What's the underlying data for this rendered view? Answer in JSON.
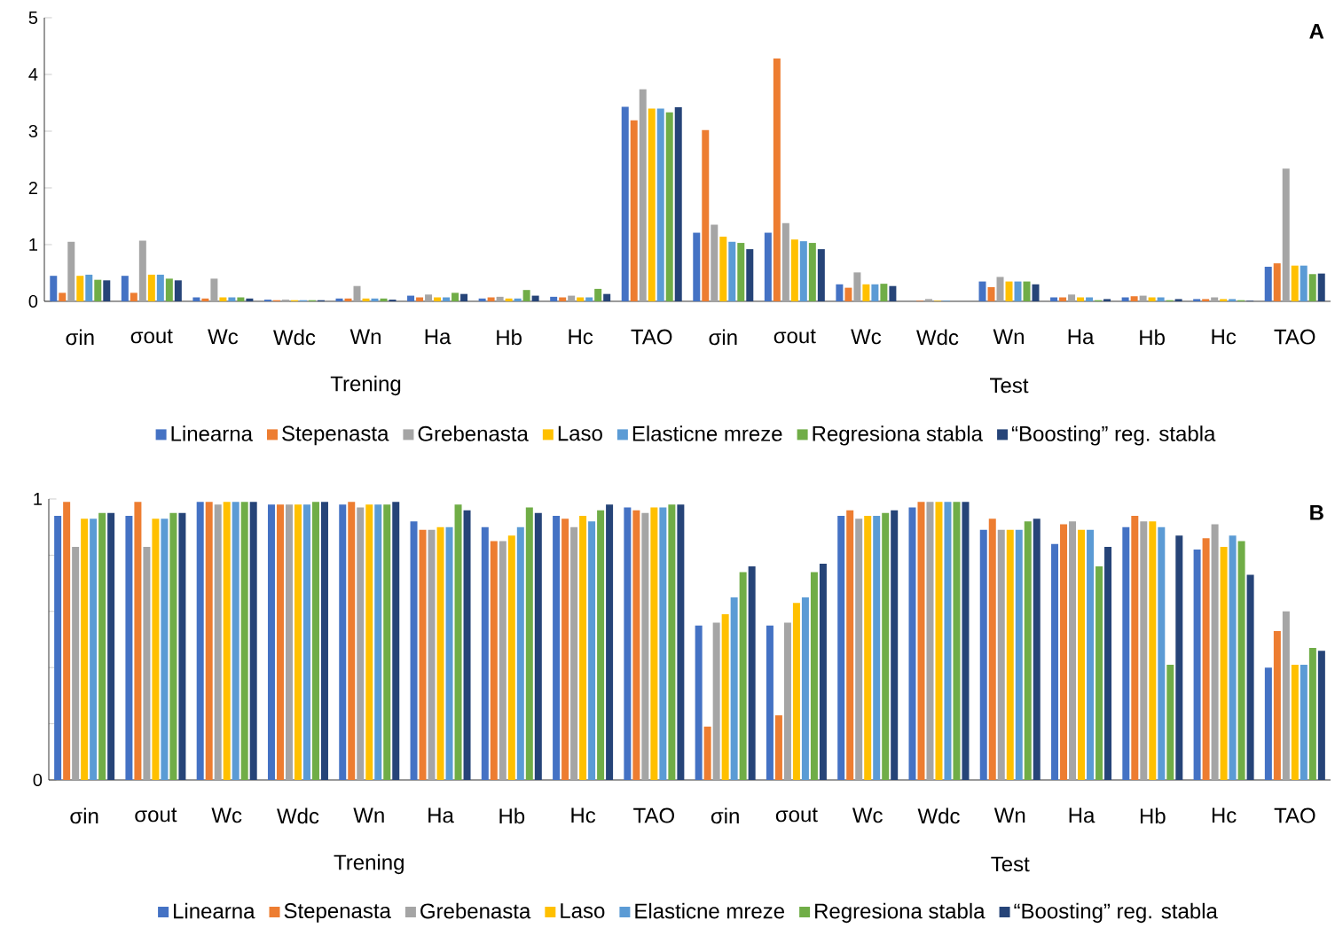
{
  "chart_data": [
    {
      "type": "bar",
      "title": "A",
      "categories": [
        "σin",
        "σout",
        "Wc",
        "Wdc",
        "Wn",
        "Ha",
        "Hb",
        "Hc",
        "TAO",
        "σin",
        "σout",
        "Wc",
        "Wdc",
        "Wn",
        "Ha",
        "Hb",
        "Hc",
        "TAO"
      ],
      "annotations": [
        "Trening",
        "Test"
      ],
      "ylim": [
        0,
        5
      ],
      "yticks": [
        0,
        1,
        2,
        3,
        4,
        5
      ],
      "legend": "bottom",
      "series": [
        {
          "name": "Linearna",
          "color": "#4472c4",
          "values": [
            0.45,
            0.45,
            0.07,
            0.03,
            0.05,
            0.1,
            0.05,
            0.08,
            3.43,
            1.21,
            1.21,
            0.3,
            0.0,
            0.35,
            0.07,
            0.07,
            0.04,
            0.61
          ]
        },
        {
          "name": "Stepenasta",
          "color": "#ed7d31",
          "values": [
            0.15,
            0.15,
            0.05,
            0.02,
            0.05,
            0.07,
            0.07,
            0.07,
            3.19,
            3.02,
            4.28,
            0.24,
            0.01,
            0.25,
            0.07,
            0.09,
            0.04,
            0.67
          ]
        },
        {
          "name": "Grebenasta",
          "color": "#a5a5a5",
          "values": [
            1.05,
            1.07,
            0.4,
            0.03,
            0.27,
            0.12,
            0.08,
            0.1,
            3.74,
            1.35,
            1.38,
            0.51,
            0.04,
            0.43,
            0.12,
            0.1,
            0.07,
            2.34
          ]
        },
        {
          "name": "Laso",
          "color": "#ffc000",
          "values": [
            0.45,
            0.47,
            0.07,
            0.02,
            0.05,
            0.07,
            0.05,
            0.07,
            3.4,
            1.14,
            1.09,
            0.3,
            0.01,
            0.35,
            0.07,
            0.07,
            0.04,
            0.63
          ]
        },
        {
          "name": "Elasticne mreze",
          "color": "#5b9bd5",
          "values": [
            0.47,
            0.47,
            0.07,
            0.02,
            0.05,
            0.07,
            0.05,
            0.07,
            3.4,
            1.05,
            1.06,
            0.3,
            0.01,
            0.35,
            0.07,
            0.07,
            0.04,
            0.63
          ]
        },
        {
          "name": "Regresiona stabla",
          "color": "#70ad47",
          "values": [
            0.38,
            0.4,
            0.07,
            0.02,
            0.05,
            0.15,
            0.2,
            0.22,
            3.33,
            1.03,
            1.03,
            0.31,
            0.0,
            0.35,
            0.02,
            0.02,
            0.02,
            0.48
          ]
        },
        {
          "name": "“Boosting” reg. stabla",
          "color": "#264478",
          "values": [
            0.37,
            0.37,
            0.05,
            0.02,
            0.03,
            0.13,
            0.1,
            0.13,
            3.42,
            0.92,
            0.92,
            0.27,
            0.0,
            0.3,
            0.04,
            0.04,
            0.01,
            0.49
          ]
        }
      ]
    },
    {
      "type": "bar",
      "title": "B",
      "categories": [
        "σin",
        "σout",
        "Wc",
        "Wdc",
        "Wn",
        "Ha",
        "Hb",
        "Hc",
        "TAO",
        "σin",
        "σout",
        "Wc",
        "Wdc",
        "Wn",
        "Ha",
        "Hb",
        "Hc",
        "TAO"
      ],
      "annotations": [
        "Trening",
        "Test"
      ],
      "ylim": [
        0,
        1
      ],
      "yticks": [
        0,
        {
          "value": 0.2,
          "label": null
        },
        {
          "value": 0.4,
          "label": null
        },
        {
          "value": 0.6,
          "label": null
        },
        {
          "value": 0.8,
          "label": null
        },
        1
      ],
      "legend": "bottom",
      "series": [
        {
          "name": "Linearna",
          "color": "#4472c4",
          "values": [
            0.94,
            0.94,
            0.99,
            0.98,
            0.98,
            0.92,
            0.9,
            0.94,
            0.97,
            0.55,
            0.55,
            0.94,
            0.97,
            0.89,
            0.84,
            0.9,
            0.82,
            0.4
          ]
        },
        {
          "name": "Stepenasta",
          "color": "#ed7d31",
          "values": [
            0.99,
            0.99,
            0.99,
            0.98,
            0.99,
            0.89,
            0.85,
            0.93,
            0.96,
            0.19,
            0.23,
            0.96,
            0.99,
            0.93,
            0.91,
            0.94,
            0.86,
            0.53
          ]
        },
        {
          "name": "Grebenasta",
          "color": "#a5a5a5",
          "values": [
            0.83,
            0.83,
            0.98,
            0.98,
            0.97,
            0.89,
            0.85,
            0.9,
            0.95,
            0.56,
            0.56,
            0.93,
            0.99,
            0.89,
            0.92,
            0.92,
            0.91,
            0.6
          ]
        },
        {
          "name": "Laso",
          "color": "#ffc000",
          "values": [
            0.93,
            0.93,
            0.99,
            0.98,
            0.98,
            0.9,
            0.87,
            0.94,
            0.97,
            0.59,
            0.63,
            0.94,
            0.99,
            0.89,
            0.89,
            0.92,
            0.83,
            0.41
          ]
        },
        {
          "name": "Elasticne mreze",
          "color": "#5b9bd5",
          "values": [
            0.93,
            0.93,
            0.99,
            0.98,
            0.98,
            0.9,
            0.9,
            0.92,
            0.97,
            0.65,
            0.65,
            0.94,
            0.99,
            0.89,
            0.89,
            0.9,
            0.87,
            0.41
          ]
        },
        {
          "name": "Regresiona stabla",
          "color": "#70ad47",
          "values": [
            0.95,
            0.95,
            0.99,
            0.99,
            0.98,
            0.98,
            0.97,
            0.96,
            0.98,
            0.74,
            0.74,
            0.95,
            0.99,
            0.92,
            0.76,
            0.41,
            0.85,
            0.47
          ]
        },
        {
          "name": "“Boosting” reg. stabla",
          "color": "#264478",
          "values": [
            0.95,
            0.95,
            0.99,
            0.99,
            0.99,
            0.96,
            0.95,
            0.98,
            0.98,
            0.76,
            0.77,
            0.96,
            0.99,
            0.93,
            0.83,
            0.87,
            0.73,
            0.46
          ]
        }
      ]
    }
  ]
}
